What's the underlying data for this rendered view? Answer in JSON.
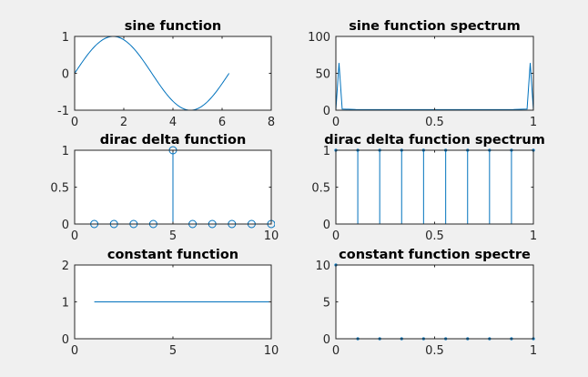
{
  "figure": {
    "background": "#f0f0f0"
  },
  "colors": {
    "series": "#0072bd",
    "axes": "#262626",
    "plot_background": "#ffffff"
  },
  "chart_data": [
    {
      "id": "sine",
      "type": "line",
      "title": "sine function",
      "xlim": [
        0,
        8
      ],
      "ylim": [
        -1,
        1
      ],
      "xticks": [
        0,
        2,
        4,
        6,
        8
      ],
      "yticks": [
        -1,
        0,
        1
      ],
      "xticklabels": [
        "0",
        "2",
        "4",
        "6",
        "8"
      ],
      "yticklabels": [
        "-1",
        "0",
        "1"
      ],
      "function": "sin(x)",
      "x_range": [
        0,
        6.2832
      ],
      "series": [
        {
          "x": [
            0,
            0.52,
            1.05,
            1.57,
            2.09,
            2.62,
            3.14,
            3.67,
            4.19,
            4.71,
            5.24,
            5.76,
            6.28
          ],
          "y": [
            0,
            0.5,
            0.87,
            1,
            0.87,
            0.5,
            0,
            -0.5,
            -0.87,
            -1,
            -0.87,
            -0.5,
            0
          ]
        }
      ]
    },
    {
      "id": "sine-spectrum",
      "type": "line",
      "title": "sine function spectrum",
      "xlim": [
        0,
        1
      ],
      "ylim": [
        0,
        100
      ],
      "xticks": [
        0,
        0.5,
        1
      ],
      "yticks": [
        0,
        50,
        100
      ],
      "xticklabels": [
        "0",
        "0.5",
        "1"
      ],
      "yticklabels": [
        "0",
        "50",
        "100"
      ],
      "series": [
        {
          "x": [
            0,
            0.0159,
            0.032,
            0.1,
            0.3,
            0.5,
            0.7,
            0.9,
            0.968,
            0.984,
            1
          ],
          "y": [
            0,
            64,
            1.5,
            1,
            0.8,
            0.8,
            0.8,
            1,
            1.5,
            64,
            0
          ]
        }
      ]
    },
    {
      "id": "dirac",
      "type": "stem",
      "title": "dirac delta function",
      "xlim": [
        0,
        10
      ],
      "ylim": [
        0,
        1
      ],
      "xticks": [
        0,
        5,
        10
      ],
      "yticks": [
        0,
        0.5,
        1
      ],
      "xticklabels": [
        "0",
        "5",
        "10"
      ],
      "yticklabels": [
        "0",
        "0.5",
        "1"
      ],
      "marker": "circle",
      "series": [
        {
          "x": [
            1,
            2,
            3,
            4,
            5,
            6,
            7,
            8,
            9,
            10
          ],
          "y": [
            0,
            0,
            0,
            0,
            1,
            0,
            0,
            0,
            0,
            0
          ]
        }
      ]
    },
    {
      "id": "dirac-spectrum",
      "type": "stem",
      "title": "dirac delta function spectrum",
      "xlim": [
        0,
        1
      ],
      "ylim": [
        0,
        1
      ],
      "xticks": [
        0,
        0.5,
        1
      ],
      "yticks": [
        0,
        0.5,
        1
      ],
      "xticklabels": [
        "0",
        "0.5",
        "1"
      ],
      "yticklabels": [
        "0",
        "0.5",
        "1"
      ],
      "marker": "dot",
      "series": [
        {
          "x": [
            0,
            0.111,
            0.222,
            0.333,
            0.444,
            0.556,
            0.667,
            0.778,
            0.889,
            1
          ],
          "y": [
            1,
            1,
            1,
            1,
            1,
            1,
            1,
            1,
            1,
            1
          ]
        }
      ]
    },
    {
      "id": "constant",
      "type": "line",
      "title": "constant function",
      "xlim": [
        0,
        10
      ],
      "ylim": [
        0,
        2
      ],
      "xticks": [
        0,
        5,
        10
      ],
      "yticks": [
        0,
        1,
        2
      ],
      "xticklabels": [
        "0",
        "5",
        "10"
      ],
      "yticklabels": [
        "0",
        "1",
        "2"
      ],
      "series": [
        {
          "x": [
            1,
            10
          ],
          "y": [
            1,
            1
          ]
        }
      ]
    },
    {
      "id": "constant-spectrum",
      "type": "stem",
      "title": "constant function spectre",
      "xlim": [
        0,
        1
      ],
      "ylim": [
        0,
        10
      ],
      "xticks": [
        0,
        0.5,
        1
      ],
      "yticks": [
        0,
        5,
        10
      ],
      "xticklabels": [
        "0",
        "0.5",
        "1"
      ],
      "yticklabels": [
        "0",
        "5",
        "10"
      ],
      "marker": "dot",
      "series": [
        {
          "x": [
            0,
            0.111,
            0.222,
            0.333,
            0.444,
            0.556,
            0.667,
            0.778,
            0.889,
            1
          ],
          "y": [
            10,
            0,
            0,
            0,
            0,
            0,
            0,
            0,
            0,
            0
          ]
        }
      ]
    }
  ]
}
